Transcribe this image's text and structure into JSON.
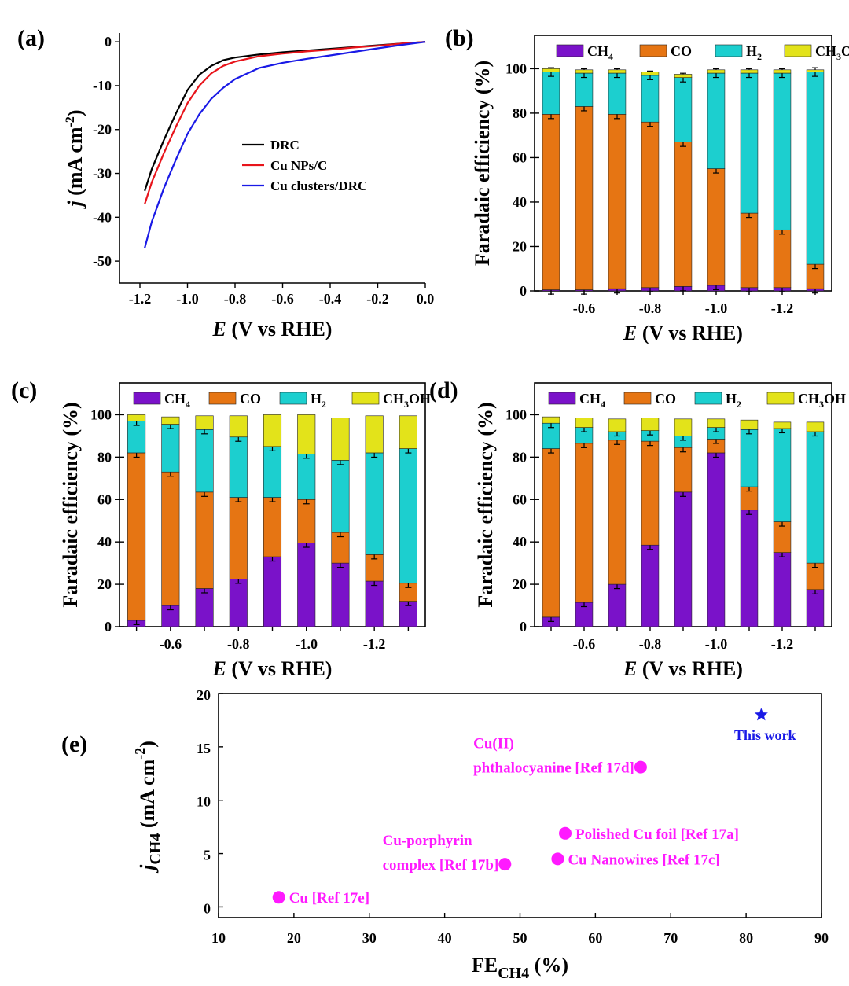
{
  "figure": {
    "panel_labels": [
      "(a)",
      "(b)",
      "(c)",
      "(d)",
      "(e)"
    ]
  },
  "colors": {
    "DRC": "#000000",
    "Cu NPs/C": "#e8141b",
    "Cu clusters/DRC": "#1a1ae6",
    "CH4": "#7a12c9",
    "CO": "#e67513",
    "H2": "#1ccfcf",
    "CH3OH": "#e3e31a",
    "ref_points": "#ff1aff",
    "this_work": "#1a1ae6"
  },
  "chart_data": [
    {
      "panel": "(a)",
      "type": "line",
      "xlabel_italic": "E",
      "xlabel_rest": " (V vs RHE)",
      "ylabel_italic": "j",
      "ylabel_rest": " (mA cm",
      "ylabel_sup": "-2",
      "ylabel_close": ")",
      "xlim": [
        -1.2,
        0.0
      ],
      "ylim": [
        -55,
        2
      ],
      "xticks": [
        -1.2,
        -1.0,
        -0.8,
        -0.6,
        -0.4,
        -0.2,
        0.0
      ],
      "xticklabels": [
        "-1.2",
        "-1.0",
        "-0.8",
        "-0.6",
        "-0.4",
        "-0.2",
        "0.0"
      ],
      "yticks": [
        0,
        -10,
        -20,
        -30,
        -40,
        -50
      ],
      "yticklabels": [
        "0",
        "-10",
        "-20",
        "-30",
        "-40",
        "-50"
      ],
      "legend_position": "center-right",
      "series": [
        {
          "name": "DRC",
          "x": [
            -1.18,
            -1.15,
            -1.1,
            -1.05,
            -1.0,
            -0.95,
            -0.9,
            -0.85,
            -0.8,
            -0.7,
            -0.6,
            -0.5,
            -0.4,
            -0.3,
            -0.2,
            -0.1,
            0.0
          ],
          "y": [
            -34,
            -29,
            -22.5,
            -16.5,
            -11,
            -7.5,
            -5.5,
            -4.2,
            -3.6,
            -2.9,
            -2.4,
            -2.0,
            -1.6,
            -1.2,
            -0.8,
            -0.4,
            0
          ]
        },
        {
          "name": "Cu NPs/C",
          "x": [
            -1.18,
            -1.15,
            -1.1,
            -1.05,
            -1.0,
            -0.95,
            -0.9,
            -0.85,
            -0.8,
            -0.7,
            -0.6,
            -0.5,
            -0.4,
            -0.3,
            -0.2,
            -0.1,
            0.0
          ],
          "y": [
            -37,
            -32,
            -25.5,
            -19.5,
            -14,
            -10,
            -7.2,
            -5.5,
            -4.5,
            -3.3,
            -2.7,
            -2.2,
            -1.8,
            -1.3,
            -0.9,
            -0.4,
            0
          ]
        },
        {
          "name": "Cu clusters/DRC",
          "x": [
            -1.18,
            -1.15,
            -1.1,
            -1.05,
            -1.0,
            -0.95,
            -0.9,
            -0.85,
            -0.8,
            -0.7,
            -0.6,
            -0.5,
            -0.4,
            -0.3,
            -0.2,
            -0.1,
            0.0
          ],
          "y": [
            -47,
            -41,
            -33.5,
            -27,
            -21,
            -16.5,
            -13,
            -10.5,
            -8.5,
            -6.0,
            -4.8,
            -3.9,
            -3.1,
            -2.3,
            -1.5,
            -0.7,
            0
          ]
        }
      ]
    },
    {
      "panel": "(b)",
      "type": "bar",
      "stacked": true,
      "xlabel_italic": "E",
      "xlabel_rest": " (V vs RHE)",
      "ylabel": "Faradaic efficiency (%)",
      "ylim": [
        0,
        115
      ],
      "yticks": [
        0,
        20,
        40,
        60,
        80,
        100
      ],
      "x": [
        -0.5,
        -0.6,
        -0.7,
        -0.8,
        -0.9,
        -1.0,
        -1.1,
        -1.2,
        -1.3
      ],
      "xticks": [
        -0.6,
        -0.8,
        -1.0,
        -1.2
      ],
      "xticklabels": [
        "-0.6",
        "-0.8",
        "-1.0",
        "-1.2"
      ],
      "legend_position": "top",
      "series": [
        {
          "name": "CH",
          "sub": "4",
          "key": "CH4",
          "values": [
            0.5,
            0.5,
            1,
            1.5,
            2,
            2.5,
            1.5,
            1.5,
            1
          ]
        },
        {
          "name": "CO",
          "sub": "",
          "key": "CO",
          "values": [
            79,
            82.5,
            78.5,
            74.5,
            65,
            52.5,
            33.5,
            26,
            11
          ]
        },
        {
          "name": "H",
          "sub": "2",
          "key": "H2",
          "values": [
            19,
            15,
            18.5,
            21,
            29,
            43,
            63,
            70.5,
            86.5
          ]
        },
        {
          "name": "CH",
          "sub": "3",
          "tail": "OH",
          "key": "CH3OH",
          "values": [
            1.5,
            1.5,
            1.5,
            1.5,
            1.5,
            1.5,
            1.5,
            1.5,
            1
          ]
        }
      ]
    },
    {
      "panel": "(c)",
      "type": "bar",
      "stacked": true,
      "xlabel_italic": "E",
      "xlabel_rest": " (V vs RHE)",
      "ylabel": "Faradaic efficiency (%)",
      "ylim": [
        0,
        115
      ],
      "yticks": [
        0,
        20,
        40,
        60,
        80,
        100
      ],
      "x": [
        -0.5,
        -0.6,
        -0.7,
        -0.8,
        -0.9,
        -1.0,
        -1.1,
        -1.2,
        -1.3
      ],
      "xticks": [
        -0.6,
        -0.8,
        -1.0,
        -1.2
      ],
      "xticklabels": [
        "-0.6",
        "-0.8",
        "-1.0",
        "-1.2"
      ],
      "legend_position": "top",
      "series": [
        {
          "name": "CH",
          "sub": "4",
          "key": "CH4",
          "values": [
            3,
            10,
            18,
            22.5,
            33,
            39.5,
            30,
            21.5,
            12
          ]
        },
        {
          "name": "CO",
          "sub": "",
          "key": "CO",
          "values": [
            79,
            63,
            45.5,
            38.5,
            28,
            20.5,
            14.5,
            12.5,
            8.5
          ]
        },
        {
          "name": "H",
          "sub": "2",
          "key": "H2",
          "values": [
            15,
            22.5,
            29.5,
            28.5,
            24,
            21.5,
            34,
            48,
            63.5
          ]
        },
        {
          "name": "CH",
          "sub": "3",
          "tail": "OH",
          "key": "CH3OH",
          "values": [
            3,
            3.5,
            6.5,
            10,
            15,
            18.5,
            20,
            17.5,
            15.5
          ]
        }
      ]
    },
    {
      "panel": "(d)",
      "type": "bar",
      "stacked": true,
      "xlabel_italic": "E",
      "xlabel_rest": " (V vs RHE)",
      "ylabel": "Faradaic efficiency (%)",
      "ylim": [
        0,
        115
      ],
      "yticks": [
        0,
        20,
        40,
        60,
        80,
        100
      ],
      "x": [
        -0.5,
        -0.6,
        -0.7,
        -0.8,
        -0.9,
        -1.0,
        -1.1,
        -1.2,
        -1.3
      ],
      "xticks": [
        -0.6,
        -0.8,
        -1.0,
        -1.2
      ],
      "xticklabels": [
        "-0.6",
        "-0.8",
        "-1.0",
        "-1.2"
      ],
      "legend_position": "top",
      "series": [
        {
          "name": "CH",
          "sub": "4",
          "key": "CH4",
          "values": [
            4.5,
            11.5,
            20,
            38.5,
            63.5,
            82,
            55,
            35,
            17.5
          ]
        },
        {
          "name": "CO",
          "sub": "",
          "key": "CO",
          "values": [
            79.5,
            75,
            68,
            49,
            21,
            6.5,
            11,
            14.5,
            12.5
          ]
        },
        {
          "name": "H",
          "sub": "2",
          "key": "H2",
          "values": [
            12,
            7.5,
            4,
            5,
            5.5,
            5.5,
            27,
            44,
            62
          ]
        },
        {
          "name": "CH",
          "sub": "3",
          "tail": "OH",
          "key": "CH3OH",
          "values": [
            3,
            4.5,
            6,
            6,
            8,
            4,
            4.5,
            3,
            4.5
          ]
        }
      ]
    },
    {
      "panel": "(e)",
      "type": "scatter",
      "xlabel": "FE",
      "xlabel_sub": "CH4",
      "xlabel_rest": " (%)",
      "ylabel_italic": "j",
      "ylabel_sub": "CH4",
      "ylabel_rest": " (mA cm",
      "ylabel_sup": "-2",
      "ylabel_close": ")",
      "xlim": [
        10,
        90
      ],
      "ylim": [
        -1,
        20
      ],
      "xticks": [
        10,
        20,
        30,
        40,
        50,
        60,
        70,
        80,
        90
      ],
      "yticks": [
        0,
        5,
        10,
        15,
        20
      ],
      "points": [
        {
          "x": 18,
          "y": 0.9,
          "marker": "circle",
          "label_lines": [
            "Cu [Ref 17e]"
          ],
          "label_pos": "right"
        },
        {
          "x": 48,
          "y": 4.0,
          "marker": "circle",
          "label_lines": [
            "Cu-porphyrin",
            "complex  [Ref 17b]"
          ],
          "label_pos": "left-above"
        },
        {
          "x": 55,
          "y": 4.5,
          "marker": "circle",
          "label_lines": [
            "Cu Nanowires   [Ref 17c]"
          ],
          "label_pos": "right"
        },
        {
          "x": 56,
          "y": 6.9,
          "marker": "circle",
          "label_lines": [
            "Polished Cu foil [Ref 17a]"
          ],
          "label_pos": "right"
        },
        {
          "x": 66,
          "y": 13.1,
          "marker": "circle",
          "label_lines": [
            "Cu(II)",
            "phthalocyanine [Ref 17d]"
          ],
          "label_pos": "left-above"
        },
        {
          "x": 82,
          "y": 18.0,
          "marker": "star",
          "label_lines": [
            "This work"
          ],
          "label_pos": "below"
        }
      ]
    }
  ]
}
